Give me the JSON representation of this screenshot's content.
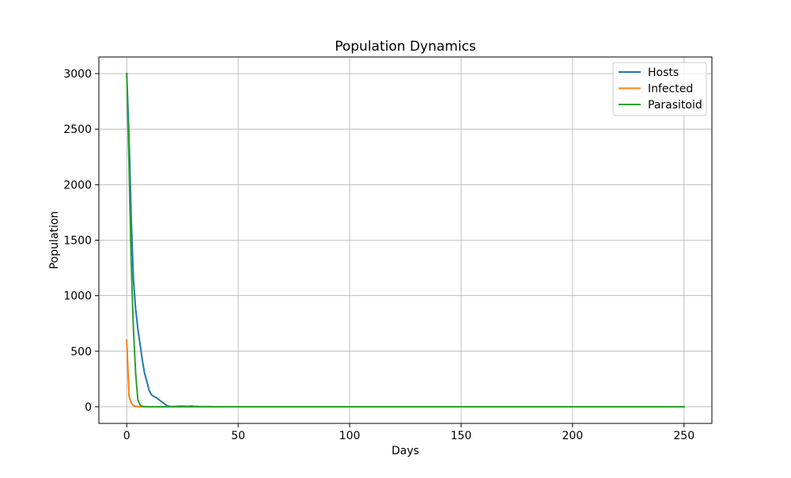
{
  "chart_data": {
    "type": "line",
    "title": "Population Dynamics",
    "xlabel": "Days",
    "ylabel": "Population",
    "xlim": [
      -12.5,
      262.5
    ],
    "ylim": [
      -150,
      3150
    ],
    "xticks": [
      0,
      50,
      100,
      150,
      200,
      250
    ],
    "yticks": [
      0,
      500,
      1000,
      1500,
      2000,
      2500,
      3000
    ],
    "grid": true,
    "legend_position": "top-right",
    "series": [
      {
        "name": "Hosts",
        "color": "#1f77b4",
        "x": [
          0,
          1,
          2,
          3,
          4,
          5,
          6,
          7,
          8,
          9,
          10,
          11,
          12,
          13,
          14,
          15,
          16,
          17,
          18,
          19,
          20,
          22,
          24,
          26,
          28,
          29,
          30,
          32,
          35,
          40,
          50,
          100,
          150,
          200,
          250
        ],
        "y": [
          3000,
          2450,
          1700,
          1150,
          880,
          700,
          560,
          420,
          300,
          230,
          150,
          110,
          95,
          85,
          70,
          55,
          40,
          25,
          10,
          4,
          2,
          3,
          5,
          4,
          3,
          6,
          4,
          2,
          1,
          0,
          0,
          0,
          0,
          0,
          0
        ]
      },
      {
        "name": "Infected",
        "color": "#ff7f0e",
        "x": [
          0,
          1,
          2,
          3,
          4,
          5,
          6,
          10,
          50,
          100,
          150,
          200,
          250
        ],
        "y": [
          600,
          100,
          35,
          10,
          4,
          1,
          0,
          0,
          0,
          0,
          0,
          0,
          0
        ]
      },
      {
        "name": "Parasitoid",
        "color": "#2ca02c",
        "x": [
          0,
          1,
          2,
          3,
          4,
          5,
          6,
          7,
          8,
          10,
          50,
          100,
          150,
          200,
          250
        ],
        "y": [
          3000,
          2200,
          1300,
          700,
          300,
          60,
          15,
          4,
          1,
          0,
          0,
          0,
          0,
          0,
          0
        ]
      }
    ]
  }
}
